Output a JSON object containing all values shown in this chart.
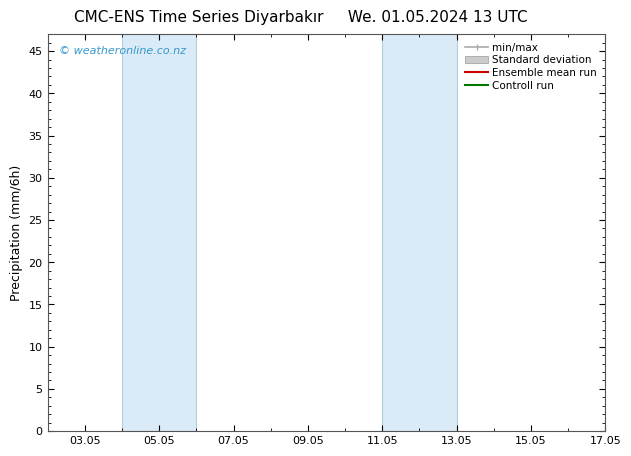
{
  "title_left": "CMC-ENS Time Series Diyarbakır",
  "title_right": "We. 01.05.2024 13 UTC",
  "ylabel": "Precipitation (mm/6h)",
  "watermark": "© weatheronline.co.nz",
  "xlim_min": 2.0,
  "xlim_max": 16.0,
  "ylim_min": 0,
  "ylim_max": 47,
  "yticks": [
    0,
    5,
    10,
    15,
    20,
    25,
    30,
    35,
    40,
    45
  ],
  "xtick_labels": [
    "03.05",
    "05.05",
    "07.05",
    "09.05",
    "11.05",
    "13.05",
    "15.05",
    "17.05"
  ],
  "xtick_positions": [
    3,
    5,
    7,
    9,
    11,
    13,
    15,
    17
  ],
  "shade_bands": [
    {
      "x_start": 4.0,
      "x_end": 6.0,
      "color": "#daeaf7"
    },
    {
      "x_start": 11.0,
      "x_end": 13.0,
      "color": "#daeaf7"
    }
  ],
  "band_edge_color": "#b0cfe0",
  "legend_items": [
    {
      "label": "min/max",
      "color": "#aaaaaa",
      "lw": 1.2,
      "style": "line_with_ticks"
    },
    {
      "label": "Standard deviation",
      "color": "#cccccc",
      "lw": 7,
      "style": "band"
    },
    {
      "label": "Ensemble mean run",
      "color": "#cc0000",
      "lw": 1.5,
      "style": "line"
    },
    {
      "label": "Controll run",
      "color": "#007700",
      "lw": 1.5,
      "style": "line"
    }
  ],
  "bg_color": "#ffffff",
  "plot_bg_color": "#ffffff",
  "border_color": "#555555",
  "title_fontsize": 11,
  "tick_fontsize": 8,
  "ylabel_fontsize": 9,
  "watermark_color": "#3399cc",
  "watermark_fontsize": 8,
  "legend_fontsize": 7.5
}
